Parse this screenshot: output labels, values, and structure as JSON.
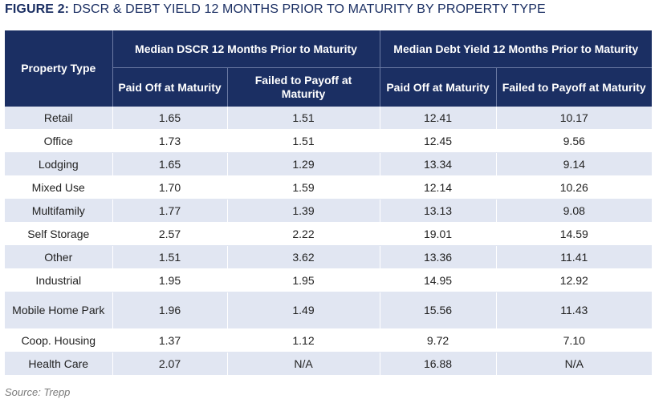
{
  "figure": {
    "label": "FIGURE 2:",
    "title": " DSCR & DEBT YIELD 12 MONTHS PRIOR TO MATURITY BY PROPERTY TYPE"
  },
  "chart_data": {
    "type": "table",
    "title": "FIGURE 2: DSCR & DEBT YIELD 12 MONTHS PRIOR TO MATURITY BY PROPERTY TYPE",
    "header": {
      "row_label": "Property Type",
      "groups": [
        {
          "label": "Median DSCR 12 Months Prior to Maturity",
          "columns": [
            "Paid Off at Maturity",
            "Failed to Payoff at Maturity"
          ]
        },
        {
          "label": "Median Debt Yield 12 Months Prior to Maturity",
          "columns": [
            "Paid Off at Maturity",
            "Failed to Payoff at Maturity"
          ]
        }
      ]
    },
    "rows": [
      {
        "type": "Retail",
        "dscr_paid": "1.65",
        "dscr_failed": "1.51",
        "dy_paid": "12.41",
        "dy_failed": "10.17"
      },
      {
        "type": "Office",
        "dscr_paid": "1.73",
        "dscr_failed": "1.51",
        "dy_paid": "12.45",
        "dy_failed": "9.56"
      },
      {
        "type": "Lodging",
        "dscr_paid": "1.65",
        "dscr_failed": "1.29",
        "dy_paid": "13.34",
        "dy_failed": "9.14"
      },
      {
        "type": "Mixed Use",
        "dscr_paid": "1.70",
        "dscr_failed": "1.59",
        "dy_paid": "12.14",
        "dy_failed": "10.26"
      },
      {
        "type": "Multifamily",
        "dscr_paid": "1.77",
        "dscr_failed": "1.39",
        "dy_paid": "13.13",
        "dy_failed": "9.08"
      },
      {
        "type": "Self Storage",
        "dscr_paid": "2.57",
        "dscr_failed": "2.22",
        "dy_paid": "19.01",
        "dy_failed": "14.59"
      },
      {
        "type": "Other",
        "dscr_paid": "1.51",
        "dscr_failed": "3.62",
        "dy_paid": "13.36",
        "dy_failed": "11.41"
      },
      {
        "type": "Industrial",
        "dscr_paid": "1.95",
        "dscr_failed": "1.95",
        "dy_paid": "14.95",
        "dy_failed": "12.92"
      },
      {
        "type": "Mobile Home Park",
        "dscr_paid": "1.96",
        "dscr_failed": "1.49",
        "dy_paid": "15.56",
        "dy_failed": "11.43",
        "tall": true
      },
      {
        "type": "Coop. Housing",
        "dscr_paid": "1.37",
        "dscr_failed": "1.12",
        "dy_paid": "9.72",
        "dy_failed": "7.10"
      },
      {
        "type": "Health Care",
        "dscr_paid": "2.07",
        "dscr_failed": "N/A",
        "dy_paid": "16.88",
        "dy_failed": "N/A"
      }
    ],
    "source": "Source: Trepp"
  },
  "colors": {
    "header_bg": "#1b2f63",
    "band_bg": "#e1e6f2",
    "title_color": "#1b2f63"
  }
}
